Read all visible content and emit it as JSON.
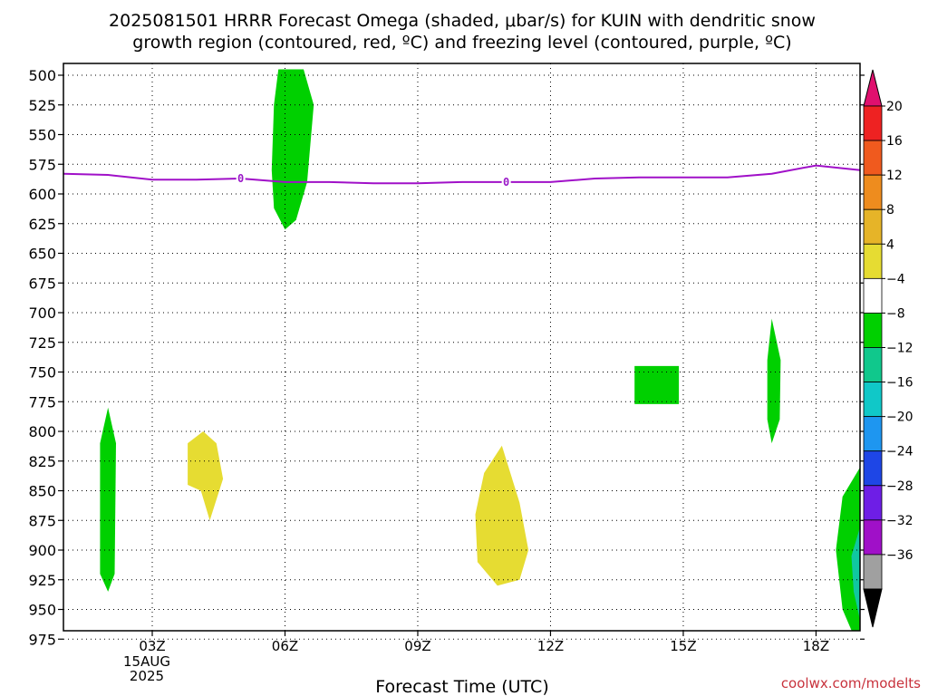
{
  "title_lines": [
    "2025081501 HRRR Forecast Omega (shaded, μbar/s) for KUIN with dendritic snow",
    "growth region (contoured, red, ºC) and freezing level (contoured, purple, ºC)"
  ],
  "credit": "coolwx.com/modelts",
  "chart_data": {
    "type": "heatmap",
    "title": "2025081501 HRRR Forecast Omega (shaded, μbar/s) for KUIN with dendritic snow growth region (contoured, red, ºC) and freezing level (contoured, purple, ºC)",
    "xlabel": "Forecast Time (UTC)",
    "ylabel": "",
    "x_unit": "hours after 00Z 15AUG2025",
    "xlim": [
      1,
      19
    ],
    "ylim": [
      990,
      495
    ],
    "y_ticks": [
      500,
      525,
      550,
      575,
      600,
      625,
      650,
      675,
      700,
      725,
      750,
      775,
      800,
      825,
      850,
      875,
      900,
      925,
      950,
      975
    ],
    "x_ticks": [
      {
        "hour": 3,
        "label": "03Z",
        "sub": [
          "15AUG",
          "2025"
        ]
      },
      {
        "hour": 6,
        "label": "06Z",
        "sub": []
      },
      {
        "hour": 9,
        "label": "09Z",
        "sub": []
      },
      {
        "hour": 12,
        "label": "12Z",
        "sub": []
      },
      {
        "hour": 15,
        "label": "15Z",
        "sub": []
      },
      {
        "hour": 18,
        "label": "18Z",
        "sub": []
      }
    ],
    "grid": true,
    "freezing_level": {
      "label": "0",
      "label_at": [
        5,
        11
      ],
      "color": "#a010c8",
      "points": [
        [
          1,
          583
        ],
        [
          2,
          584
        ],
        [
          3,
          588
        ],
        [
          4,
          588
        ],
        [
          5,
          587
        ],
        [
          6,
          590
        ],
        [
          7,
          590
        ],
        [
          8,
          591
        ],
        [
          9,
          591
        ],
        [
          10,
          590
        ],
        [
          11,
          590
        ],
        [
          12,
          590
        ],
        [
          13,
          587
        ],
        [
          14,
          586
        ],
        [
          15,
          586
        ],
        [
          16,
          586
        ],
        [
          17,
          583
        ],
        [
          18,
          576
        ],
        [
          19,
          580
        ]
      ]
    },
    "ground": {
      "color": "#a0522d",
      "pressure": 985
    },
    "shaded_regions": [
      {
        "name": "upward-6z",
        "color": "#00d000",
        "points": [
          [
            5.85,
            495
          ],
          [
            6.42,
            495
          ],
          [
            6.65,
            525
          ],
          [
            6.5,
            590
          ],
          [
            6.25,
            622
          ],
          [
            6.0,
            630
          ],
          [
            5.75,
            612
          ],
          [
            5.7,
            580
          ],
          [
            5.75,
            525
          ]
        ]
      },
      {
        "name": "upward-2z",
        "color": "#00d000",
        "points": [
          [
            2.0,
            780
          ],
          [
            2.18,
            810
          ],
          [
            2.15,
            920
          ],
          [
            2.0,
            935
          ],
          [
            1.82,
            920
          ],
          [
            1.82,
            810
          ]
        ]
      },
      {
        "name": "downward-4z",
        "color": "#e6dc32",
        "points": [
          [
            4.15,
            800
          ],
          [
            4.45,
            810
          ],
          [
            4.6,
            840
          ],
          [
            4.3,
            875
          ],
          [
            4.1,
            850
          ],
          [
            3.8,
            845
          ],
          [
            3.8,
            810
          ]
        ]
      },
      {
        "name": "downward-11z",
        "color": "#e6dc32",
        "points": [
          [
            10.9,
            812
          ],
          [
            11.3,
            860
          ],
          [
            11.5,
            900
          ],
          [
            11.3,
            925
          ],
          [
            10.8,
            930
          ],
          [
            10.35,
            910
          ],
          [
            10.3,
            870
          ],
          [
            10.5,
            835
          ]
        ]
      },
      {
        "name": "upward-14z",
        "color": "#00d000",
        "points": [
          [
            13.9,
            745
          ],
          [
            14.9,
            745
          ],
          [
            14.9,
            777
          ],
          [
            13.9,
            777
          ]
        ]
      },
      {
        "name": "upward-17z",
        "color": "#00d000",
        "points": [
          [
            17.0,
            705
          ],
          [
            17.2,
            740
          ],
          [
            17.18,
            790
          ],
          [
            17.0,
            810
          ],
          [
            16.9,
            790
          ],
          [
            16.9,
            740
          ]
        ]
      },
      {
        "name": "upward-19z",
        "color": "#00d000",
        "points": [
          [
            19.0,
            830
          ],
          [
            19.0,
            985
          ],
          [
            18.6,
            950
          ],
          [
            18.45,
            900
          ],
          [
            18.6,
            855
          ]
        ]
      },
      {
        "name": "upward-strong-19z",
        "color": "#10c8a0",
        "points": [
          [
            19.0,
            880
          ],
          [
            19.0,
            960
          ],
          [
            18.85,
            935
          ],
          [
            18.8,
            905
          ]
        ]
      }
    ],
    "colorbar": {
      "labels": [
        "20",
        "16",
        "12",
        "8",
        "4",
        "−4",
        "−8",
        "−12",
        "−16",
        "−20",
        "−24",
        "−28",
        "−32",
        "−36"
      ],
      "top_arrow_color": "#e0106e",
      "bottom_arrow_color": "#000000",
      "colors": [
        "#ee2222",
        "#f05a1e",
        "#ee8c1e",
        "#e6b428",
        "#e6dc32",
        "#ffffff",
        "#00d000",
        "#10c88c",
        "#10c8c8",
        "#1e96f0",
        "#1e46e6",
        "#6e1ee6",
        "#a010c8",
        "#a0a0a0"
      ]
    }
  }
}
